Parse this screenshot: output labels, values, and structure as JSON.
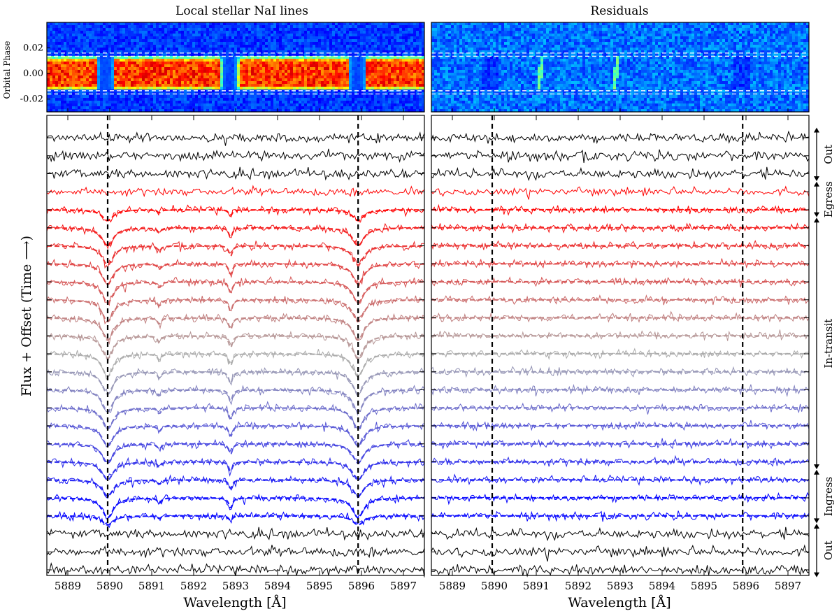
{
  "chart_data": [
    {
      "type": "heatmap",
      "title": "Local stellar NaI lines",
      "ylabel": "Orbital Phase",
      "yticks": [
        "0.02",
        "0.00",
        "-0.02"
      ],
      "ytick_values": [
        0.02,
        0.0,
        -0.02
      ],
      "ylim": [
        -0.03,
        0.04
      ],
      "xlim": [
        5888.5,
        5897.5
      ],
      "transit_window_phase": [
        -0.0135,
        0.0135
      ],
      "contact_lines_phase": [
        0.016,
        0.0135,
        -0.0135,
        -0.016
      ],
      "dark_columns": [
        5889.9,
        5892.85,
        5895.9
      ],
      "colormap": "jet"
    },
    {
      "type": "heatmap",
      "title": "Residuals",
      "ylim": [
        -0.03,
        0.04
      ],
      "xlim": [
        5888.5,
        5897.5
      ],
      "transit_window_phase": [
        -0.0135,
        0.0135
      ],
      "contact_lines_phase": [
        0.016,
        0.0135,
        -0.0135,
        -0.016
      ],
      "residual_tracks": [
        {
          "x_start": 5891.05,
          "x_end": 5891.15
        },
        {
          "x_start": 5892.85,
          "x_end": 5892.95
        }
      ],
      "colormap": "jet"
    },
    {
      "type": "line",
      "ylabel": "Flux + Offset    (Time ⟶)",
      "xlabel": "Wavelength [Å]",
      "xlim": [
        5888.5,
        5897.5
      ],
      "xticks": [
        "5889",
        "5890",
        "5891",
        "5892",
        "5893",
        "5894",
        "5895",
        "5896",
        "5897"
      ],
      "xtick_values": [
        5889,
        5890,
        5891,
        5892,
        5893,
        5894,
        5895,
        5896,
        5897
      ],
      "vlines": [
        5889.95,
        5895.92
      ],
      "num_spectra": 25,
      "line_centers": [
        5889.95,
        5895.92,
        5892.88,
        5891.18
      ],
      "depths": {
        "out_of_transit": 0,
        "ingress": [
          0.7,
          1.0,
          0.5
        ],
        "in_transit_peak": 1.3,
        "egress": [
          1.0,
          0.0
        ]
      },
      "colors": {
        "out": "#000000",
        "egress": "#ff0000",
        "mid": "#aaaaaa",
        "ingress": "#0000ff"
      }
    },
    {
      "type": "line",
      "xlabel": "Wavelength [Å]",
      "xlim": [
        5888.5,
        5897.5
      ],
      "xticks": [
        "5889",
        "5890",
        "5891",
        "5892",
        "5893",
        "5894",
        "5895",
        "5896",
        "5897"
      ],
      "xtick_values": [
        5889,
        5890,
        5891,
        5892,
        5893,
        5894,
        5895,
        5896,
        5897
      ],
      "vlines": [
        5889.95,
        5895.92
      ],
      "num_spectra": 25
    }
  ],
  "groups": [
    {
      "label": "Out",
      "from": 0,
      "to": 3
    },
    {
      "label": "Egress",
      "from": 3,
      "to": 5
    },
    {
      "label": "In-transit",
      "from": 5,
      "to": 19
    },
    {
      "label": "Ingress",
      "from": 19,
      "to": 22
    },
    {
      "label": "Out",
      "from": 22,
      "to": 25
    }
  ]
}
